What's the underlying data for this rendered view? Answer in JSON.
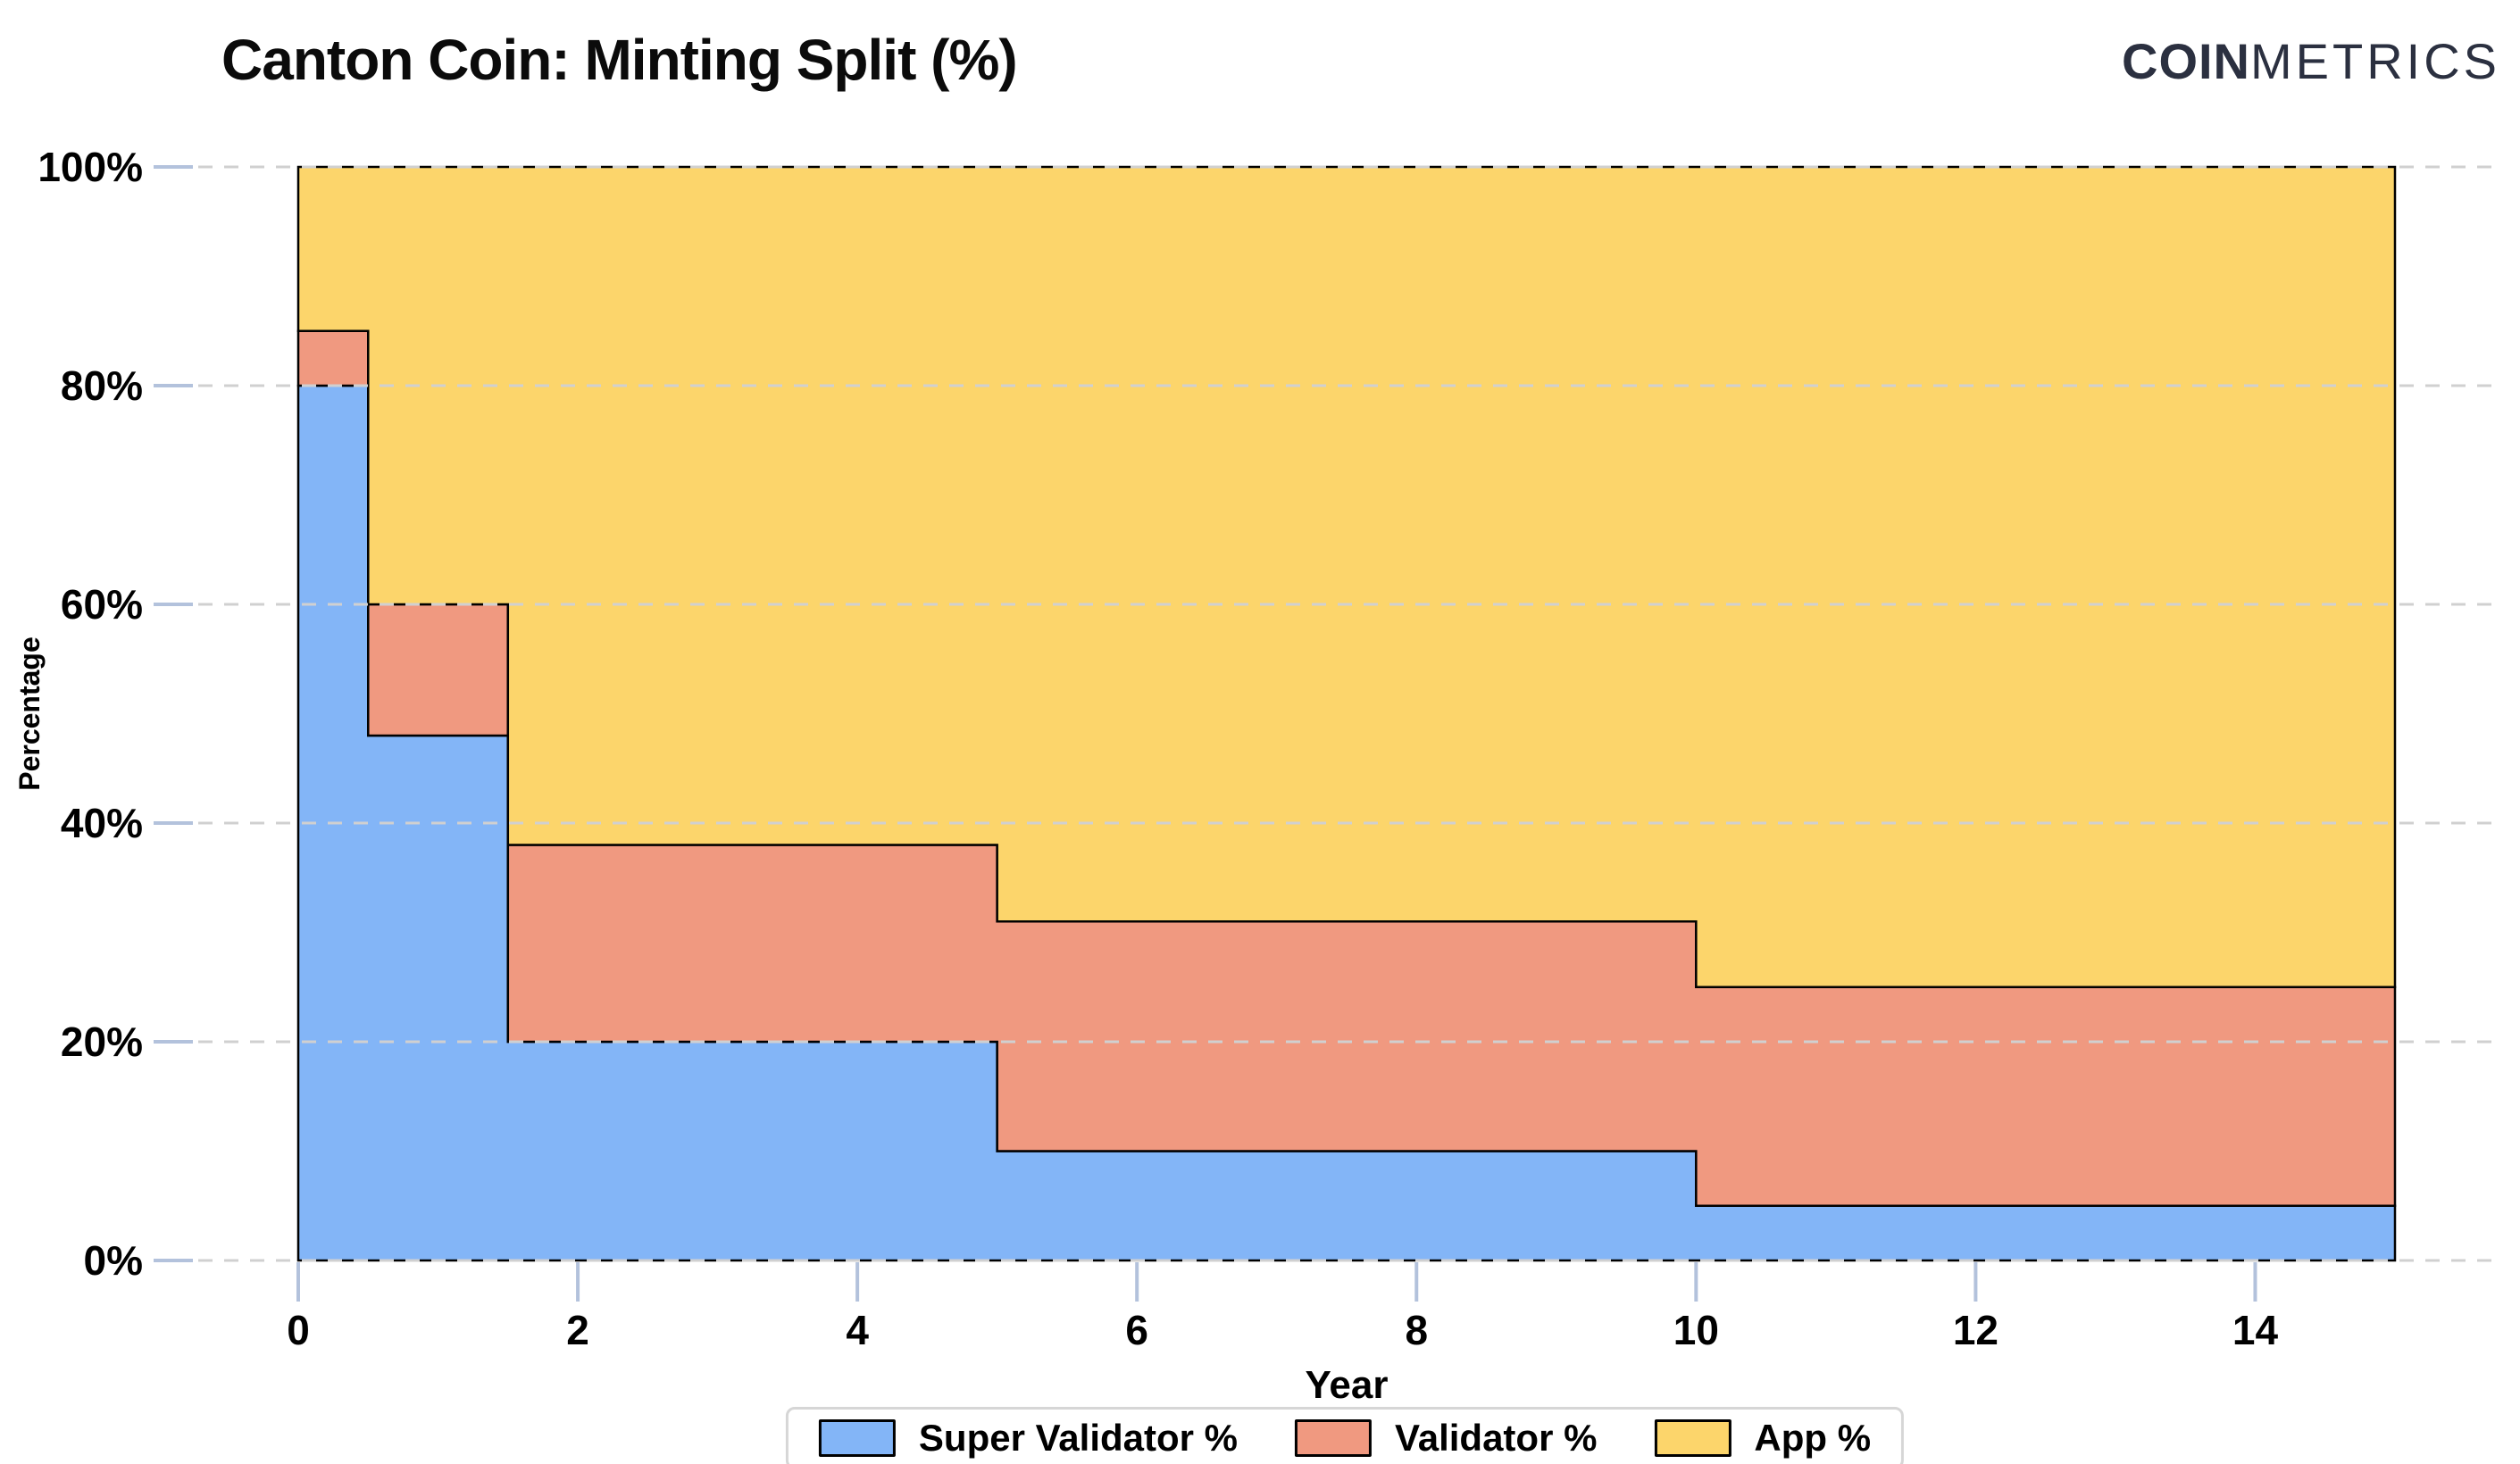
{
  "header": {
    "title": "Canton Coin: Minting Split (%)",
    "logo": {
      "bold": "COIN",
      "light": "METRICS",
      "color": "#2b3040"
    }
  },
  "chart_data": {
    "type": "area",
    "variant": "stacked-step-percentage",
    "title": "Canton Coin: Minting Split (%)",
    "xlabel": "Year",
    "ylabel": "Percentage",
    "xlim": [
      0,
      15
    ],
    "ylim": [
      0,
      100
    ],
    "x_ticks": [
      0,
      2,
      4,
      6,
      8,
      10,
      12,
      14
    ],
    "y_tick_values": [
      0,
      20,
      40,
      60,
      80,
      100
    ],
    "y_tick_suffix": "%",
    "grid": {
      "horizontal": true,
      "style": "dashed",
      "color": "#d0d0d0"
    },
    "tick_color": "#b3c2dc",
    "outline_color": "#000000",
    "legend_position": "bottom",
    "series": [
      {
        "key": "super_validator",
        "name": "Super Validator %",
        "color": "#83b5f7"
      },
      {
        "key": "validator",
        "name": "Validator %",
        "color": "#f09980"
      },
      {
        "key": "app",
        "name": "App %",
        "color": "#fcd56b"
      }
    ],
    "segments": [
      {
        "start_year": 0,
        "end_year": 0.5,
        "super_validator": 80,
        "validator": 5,
        "app": 15
      },
      {
        "start_year": 0.5,
        "end_year": 1.5,
        "super_validator": 48,
        "validator": 12,
        "app": 40
      },
      {
        "start_year": 1.5,
        "end_year": 5,
        "super_validator": 20,
        "validator": 18,
        "app": 62
      },
      {
        "start_year": 5,
        "end_year": 10,
        "super_validator": 10,
        "validator": 21,
        "app": 69
      },
      {
        "start_year": 10,
        "end_year": 15,
        "super_validator": 5,
        "validator": 20,
        "app": 75
      }
    ]
  }
}
